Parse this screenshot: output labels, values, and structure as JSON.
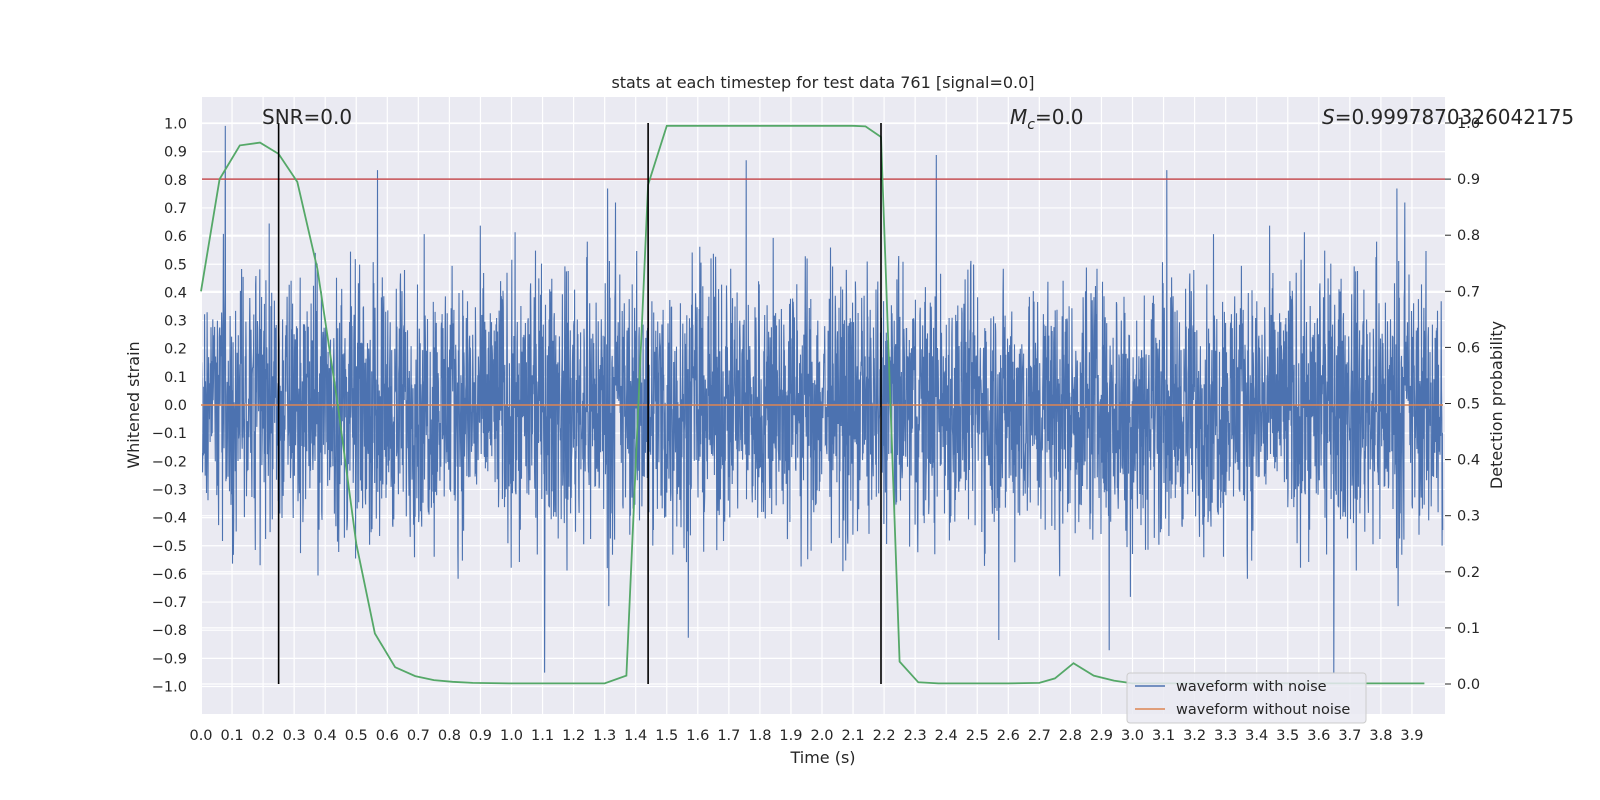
{
  "chart_data": {
    "type": "line",
    "title": "stats at each timestep for test data 761 [signal=0.0]",
    "xlabel": "Time (s)",
    "ylabel": "Whitened strain",
    "y2label": "Detection probability",
    "xlim": [
      0.0,
      4.0
    ],
    "ylim": [
      -1.1,
      1.1
    ],
    "y2lim": [
      -0.05,
      1.0
    ],
    "xticks": [
      "0.0",
      "0.1",
      "0.2",
      "0.3",
      "0.4",
      "0.5",
      "0.6",
      "0.7",
      "0.8",
      "0.9",
      "1.0",
      "1.1",
      "1.2",
      "1.3",
      "1.4",
      "1.5",
      "1.6",
      "1.7",
      "1.8",
      "1.9",
      "2.0",
      "2.1",
      "2.2",
      "2.3",
      "2.4",
      "2.5",
      "2.6",
      "2.7",
      "2.8",
      "2.9",
      "3.0",
      "3.1",
      "3.2",
      "3.3",
      "3.4",
      "3.5",
      "3.6",
      "3.7",
      "3.8",
      "3.9"
    ],
    "yticks": [
      "1.0",
      "0.9",
      "0.8",
      "0.7",
      "0.6",
      "0.5",
      "0.4",
      "0.3",
      "0.2",
      "0.1",
      "0.0",
      "−0.1",
      "−0.2",
      "−0.3",
      "−0.4",
      "−0.5",
      "−0.6",
      "−0.7",
      "−0.8",
      "−0.9",
      "−1.0"
    ],
    "y2ticks": [
      "1.0",
      "0.9",
      "0.8",
      "0.7",
      "0.6",
      "0.5",
      "0.4",
      "0.3",
      "0.2",
      "0.1",
      "0.0"
    ],
    "grid": true,
    "series": [
      {
        "name": "waveform with noise",
        "color": "#4c72b0",
        "style": "noise",
        "amplitude_range": [
          -1.0,
          1.0
        ]
      },
      {
        "name": "waveform without noise",
        "color": "#dd8452",
        "x": [
          0.0,
          4.0
        ],
        "y": [
          0.0,
          0.0
        ]
      },
      {
        "name": "detection probability",
        "axis": "right",
        "color": "#55a868",
        "x": [
          0.0,
          0.06,
          0.125,
          0.19,
          0.25,
          0.31,
          0.375,
          0.44,
          0.5,
          0.56,
          0.625,
          0.69,
          0.75,
          0.81,
          0.875,
          1.0,
          1.1,
          1.2,
          1.3,
          1.37,
          1.44,
          1.5,
          1.6,
          1.7,
          1.8,
          1.9,
          2.0,
          2.1,
          2.14,
          2.19,
          2.25,
          2.31,
          2.375,
          2.44,
          2.5,
          2.6,
          2.7,
          2.75,
          2.81,
          2.875,
          2.94,
          3.0,
          3.5,
          3.94
        ],
        "y": [
          0.7,
          0.9,
          0.96,
          0.965,
          0.945,
          0.895,
          0.74,
          0.5,
          0.25,
          0.09,
          0.03,
          0.014,
          0.007,
          0.004,
          0.002,
          0.001,
          0.001,
          0.001,
          0.001,
          0.015,
          0.89,
          0.995,
          0.995,
          0.995,
          0.995,
          0.995,
          0.995,
          0.995,
          0.994,
          0.975,
          0.04,
          0.003,
          0.001,
          0.001,
          0.001,
          0.001,
          0.002,
          0.01,
          0.037,
          0.015,
          0.006,
          0.001,
          0.001,
          0.001
        ]
      },
      {
        "name": "threshold",
        "axis": "right",
        "color": "#c44e52",
        "y": 0.9
      }
    ],
    "vlines": [
      0.25,
      1.44,
      2.19
    ],
    "annotations": {
      "snr": "SNR=0.0",
      "mc_symbol": "M",
      "mc_sub": "c",
      "mc_value": "=0.0",
      "s_symbol": "S",
      "s_value": "=0.9997870326042175"
    },
    "legend": {
      "location": "lower-right",
      "entries": [
        "waveform with noise",
        "waveform without noise"
      ]
    }
  }
}
